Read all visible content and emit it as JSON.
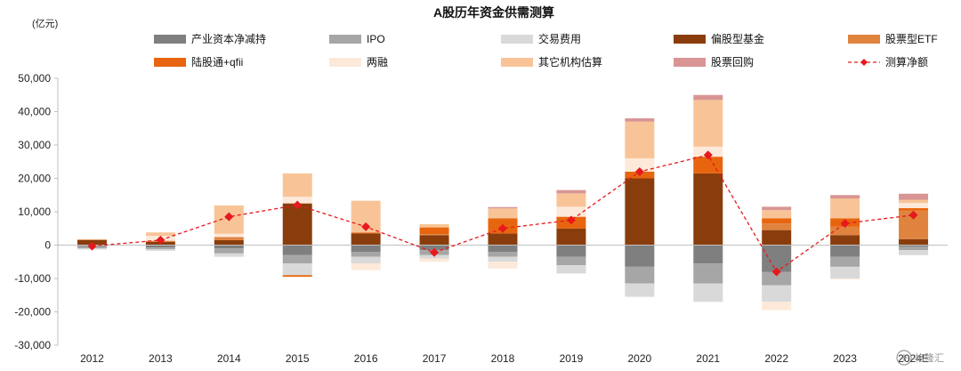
{
  "chart_data": {
    "type": "bar",
    "title": "A股历年资金供需测算",
    "unit_label": "(亿元)",
    "ylim": [
      -30000,
      50000
    ],
    "yticks": [
      "-30,000",
      "-20,000",
      "-10,000",
      "0",
      "10,000",
      "20,000",
      "30,000",
      "40,000",
      "50,000"
    ],
    "yticks_values": [
      -30000,
      -20000,
      -10000,
      0,
      10000,
      20000,
      30000,
      40000,
      50000
    ],
    "categories": [
      "2012",
      "2013",
      "2014",
      "2015",
      "2016",
      "2017",
      "2018",
      "2019",
      "2020",
      "2021",
      "2022",
      "2023",
      "2024E"
    ],
    "series": [
      {
        "name": "产业资本净减持",
        "color": "#7f7f7f",
        "values": [
          -300,
          -700,
          -1000,
          -3000,
          -2000,
          -1500,
          -2000,
          -3500,
          -6500,
          -5500,
          -8000,
          -3500,
          -500
        ]
      },
      {
        "name": "IPO",
        "color": "#a6a6a6",
        "values": [
          -700,
          -500,
          -1500,
          -2500,
          -1500,
          -1500,
          -1500,
          -2500,
          -5000,
          -6000,
          -4000,
          -3000,
          -1000
        ]
      },
      {
        "name": "交易费用",
        "color": "#d9d9d9",
        "values": [
          -300,
          -500,
          -1000,
          -3500,
          -2000,
          -1000,
          -1500,
          -2500,
          -4000,
          -5500,
          -5000,
          -3500,
          -1500
        ]
      },
      {
        "name": "偏股型基金",
        "color": "#8a3d0c",
        "values": [
          1500,
          1000,
          1500,
          12500,
          3500,
          3000,
          3500,
          5000,
          20000,
          21500,
          4500,
          3000,
          1800
        ]
      },
      {
        "name": "股票型ETF",
        "color": "#e0833f",
        "values": [
          200,
          300,
          900,
          0,
          0,
          300,
          0,
          0,
          0,
          0,
          2000,
          2500,
          8500
        ]
      },
      {
        "name": "陆股通+qfii",
        "color": "#e8650f",
        "values": [
          0,
          0,
          0,
          -500,
          300,
          2000,
          4500,
          3500,
          2000,
          5000,
          1500,
          2500,
          800
        ]
      },
      {
        "name": "两融",
        "color": "#fde9d9",
        "values": [
          0,
          1500,
          1000,
          2000,
          -2000,
          -1000,
          -2000,
          3000,
          4000,
          3000,
          -2500,
          -300,
          1500
        ]
      },
      {
        "name": "其它机构估算",
        "color": "#f8c497",
        "values": [
          0,
          1000,
          8500,
          7000,
          9500,
          1000,
          3000,
          4000,
          11000,
          14000,
          2500,
          6000,
          1000
        ]
      },
      {
        "name": "股票回购",
        "color": "#d99594",
        "values": [
          0,
          0,
          0,
          0,
          0,
          0,
          400,
          1000,
          1000,
          1500,
          1000,
          1000,
          1800
        ]
      }
    ],
    "line": {
      "name": "测算净额",
      "color": "#e6191c",
      "values": [
        -300,
        1500,
        8500,
        12000,
        5500,
        -2200,
        5000,
        7500,
        22000,
        27000,
        -8000,
        6500,
        9000
      ]
    }
  },
  "watermark": "格隆汇"
}
